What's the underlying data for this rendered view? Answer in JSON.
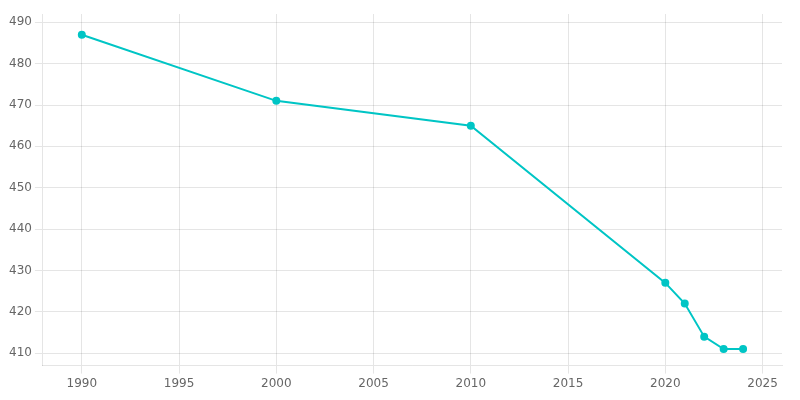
{
  "chart_data": {
    "type": "line",
    "x": [
      1990,
      2000,
      2010,
      2020,
      2021,
      2022,
      2023,
      2024
    ],
    "values": [
      487,
      471,
      465,
      427,
      422,
      414,
      411,
      411
    ],
    "color": "#00C5C5",
    "marker": "circle",
    "xlim": [
      1988,
      2026
    ],
    "ylim": [
      407,
      492
    ],
    "xticks": [
      1990,
      1995,
      2000,
      2005,
      2010,
      2015,
      2020,
      2025
    ],
    "yticks": [
      410,
      420,
      430,
      440,
      450,
      460,
      470,
      480,
      490
    ],
    "grid": true
  }
}
